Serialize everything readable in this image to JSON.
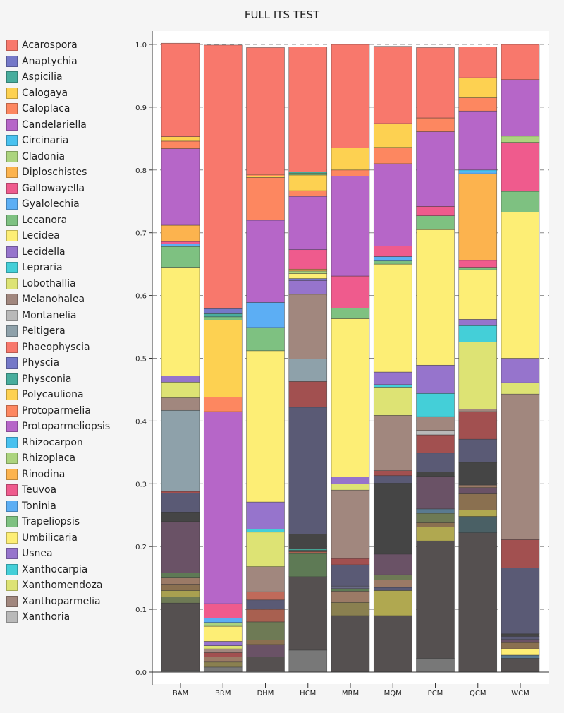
{
  "chart_data": {
    "type": "bar",
    "stacked": true,
    "title": "FULL ITS TEST",
    "xlabel": "",
    "ylabel": "",
    "ylim": [
      0,
      1
    ],
    "yticks": [
      "0.0",
      "0.1",
      "0.2",
      "0.3",
      "0.4",
      "0.5",
      "0.6",
      "0.7",
      "0.8",
      "0.9",
      "1.0"
    ],
    "grid": true,
    "legend_position": "left",
    "categories": [
      "BAM",
      "BRM",
      "DHM",
      "HCM",
      "MRM",
      "MQM",
      "PCM",
      "QCM",
      "WCM"
    ],
    "legend": [
      {
        "name": "Acarospora",
        "color": "#f8786c"
      },
      {
        "name": "Anaptychia",
        "color": "#7478c8"
      },
      {
        "name": "Aspicilia",
        "color": "#48ad9d"
      },
      {
        "name": "Calogaya",
        "color": "#fdd151"
      },
      {
        "name": "Caloplaca",
        "color": "#fd8760"
      },
      {
        "name": "Candelariella",
        "color": "#b666c8"
      },
      {
        "name": "Circinaria",
        "color": "#48c1ef"
      },
      {
        "name": "Cladonia",
        "color": "#acd47e"
      },
      {
        "name": "Diploschistes",
        "color": "#fcb34e"
      },
      {
        "name": "Gallowayella",
        "color": "#ef5b8d"
      },
      {
        "name": "Gyalolechia",
        "color": "#5caef4"
      },
      {
        "name": "Lecanora",
        "color": "#7ec181"
      },
      {
        "name": "Lecidea",
        "color": "#fdee75"
      },
      {
        "name": "Lecidella",
        "color": "#9674cc"
      },
      {
        "name": "Lepraria",
        "color": "#44cfd8"
      },
      {
        "name": "Lobothallia",
        "color": "#dde374"
      },
      {
        "name": "Melanohalea",
        "color": "#a1877e"
      },
      {
        "name": "Montanelia",
        "color": "#b9b9b9"
      },
      {
        "name": "Peltigera",
        "color": "#8ea1aa"
      },
      {
        "name": "Phaeophyscia",
        "color": "#f8786c"
      },
      {
        "name": "Physcia",
        "color": "#7478c8"
      },
      {
        "name": "Physconia",
        "color": "#48ad9d"
      },
      {
        "name": "Polycauliona",
        "color": "#fdd151"
      },
      {
        "name": "Protoparmelia",
        "color": "#fd8760"
      },
      {
        "name": "Protoparmeliopsis",
        "color": "#b666c8"
      },
      {
        "name": "Rhizocarpon",
        "color": "#48c1ef"
      },
      {
        "name": "Rhizoplaca",
        "color": "#acd47e"
      },
      {
        "name": "Rinodina",
        "color": "#fcb34e"
      },
      {
        "name": "Teuvoa",
        "color": "#ef5b8d"
      },
      {
        "name": "Toninia",
        "color": "#5caef4"
      },
      {
        "name": "Trapeliopsis",
        "color": "#7ec181"
      },
      {
        "name": "Umbilicaria",
        "color": "#fdee75"
      },
      {
        "name": "Usnea",
        "color": "#9674cc"
      },
      {
        "name": "Xanthocarpia",
        "color": "#44cfd8"
      },
      {
        "name": "Xanthomendoza",
        "color": "#dde374"
      },
      {
        "name": "Xanthoparmelia",
        "color": "#a1877e"
      },
      {
        "name": "Xanthoria",
        "color": "#b9b9b9"
      }
    ],
    "stacks": [
      {
        "category": "BAM",
        "segments": [
          {
            "color": "#787878",
            "value": 0.003
          },
          {
            "color": "#555050",
            "value": 0.107
          },
          {
            "color": "#6e7a55",
            "value": 0.01
          },
          {
            "color": "#a8a050",
            "value": 0.01
          },
          {
            "color": "#8a7050",
            "value": 0.01
          },
          {
            "color": "#9b7a66",
            "value": 0.01
          },
          {
            "color": "#5e7a55",
            "value": 0.008
          },
          {
            "color": "#6a5266",
            "value": 0.082
          },
          {
            "color": "#454545",
            "value": 0.015
          },
          {
            "color": "#5a5a75",
            "value": 0.03
          },
          {
            "color": "#a25050",
            "value": 0.003
          },
          {
            "color": "#8ea1aa",
            "value": 0.129
          },
          {
            "color": "#a1877e",
            "value": 0.02
          },
          {
            "color": "#dde374",
            "value": 0.025
          },
          {
            "color": "#9674cc",
            "value": 0.01
          },
          {
            "color": "#fdee75",
            "value": 0.173
          },
          {
            "color": "#7ec181",
            "value": 0.033
          },
          {
            "color": "#5caef4",
            "value": 0.004
          },
          {
            "color": "#ef5b8d",
            "value": 0.004
          },
          {
            "color": "#fcb34e",
            "value": 0.026
          },
          {
            "color": "#b666c8",
            "value": 0.122
          },
          {
            "color": "#fd8760",
            "value": 0.012
          },
          {
            "color": "#fdd151",
            "value": 0.007
          },
          {
            "color": "#f8786c",
            "value": 0.149
          }
        ]
      },
      {
        "category": "BRM",
        "segments": [
          {
            "color": "#787878",
            "value": 0.008
          },
          {
            "color": "#555050",
            "value": 0.0
          },
          {
            "color": "#8a8050",
            "value": 0.008
          },
          {
            "color": "#9b7a66",
            "value": 0.008
          },
          {
            "color": "#a25050",
            "value": 0.007
          },
          {
            "color": "#a1877e",
            "value": 0.006
          },
          {
            "color": "#dde374",
            "value": 0.005
          },
          {
            "color": "#9674cc",
            "value": 0.007
          },
          {
            "color": "#fdee75",
            "value": 0.024
          },
          {
            "color": "#acd47e",
            "value": 0.006
          },
          {
            "color": "#5caef4",
            "value": 0.007
          },
          {
            "color": "#ef5b8d",
            "value": 0.023
          },
          {
            "color": "#b666c8",
            "value": 0.306
          },
          {
            "color": "#fd8760",
            "value": 0.023
          },
          {
            "color": "#fdd151",
            "value": 0.123
          },
          {
            "color": "#7ec181",
            "value": 0.005
          },
          {
            "color": "#48ad9d",
            "value": 0.005
          },
          {
            "color": "#7478c8",
            "value": 0.008
          },
          {
            "color": "#f8786c",
            "value": 0.42
          }
        ]
      },
      {
        "category": "DHM",
        "segments": [
          {
            "color": "#787878",
            "value": 0.002
          },
          {
            "color": "#555050",
            "value": 0.022
          },
          {
            "color": "#6a5266",
            "value": 0.02
          },
          {
            "color": "#8a7050",
            "value": 0.007
          },
          {
            "color": "#6e7a55",
            "value": 0.029
          },
          {
            "color": "#a86050",
            "value": 0.02
          },
          {
            "color": "#5a5a75",
            "value": 0.015
          },
          {
            "color": "#c06a5a",
            "value": 0.013
          },
          {
            "color": "#a1877e",
            "value": 0.04
          },
          {
            "color": "#dde374",
            "value": 0.055
          },
          {
            "color": "#44cfd8",
            "value": 0.005
          },
          {
            "color": "#9674cc",
            "value": 0.043
          },
          {
            "color": "#fdee75",
            "value": 0.241
          },
          {
            "color": "#7ec181",
            "value": 0.037
          },
          {
            "color": "#5caef4",
            "value": 0.04
          },
          {
            "color": "#b666c8",
            "value": 0.131
          },
          {
            "color": "#fd8760",
            "value": 0.068
          },
          {
            "color": "#fdd151",
            "value": 0.002
          },
          {
            "color": "#fd8760",
            "value": 0.003
          },
          {
            "color": "#f8786c",
            "value": 0.202
          }
        ]
      },
      {
        "category": "HCM",
        "segments": [
          {
            "color": "#787878",
            "value": 0.035
          },
          {
            "color": "#555050",
            "value": 0.117
          },
          {
            "color": "#5e7a55",
            "value": 0.037
          },
          {
            "color": "#a86050",
            "value": 0.003
          },
          {
            "color": "#454545",
            "value": 0.002
          },
          {
            "color": "#48ad9d",
            "value": 0.002
          },
          {
            "color": "#454545",
            "value": 0.024
          },
          {
            "color": "#5a5a75",
            "value": 0.202
          },
          {
            "color": "#a25050",
            "value": 0.041
          },
          {
            "color": "#8ea1aa",
            "value": 0.036
          },
          {
            "color": "#a1877e",
            "value": 0.103
          },
          {
            "color": "#9674cc",
            "value": 0.022
          },
          {
            "color": "#7478c8",
            "value": 0.003
          },
          {
            "color": "#fdee75",
            "value": 0.008
          },
          {
            "color": "#acd47e",
            "value": 0.004
          },
          {
            "color": "#fcb34e",
            "value": 0.003
          },
          {
            "color": "#ef5b8d",
            "value": 0.031
          },
          {
            "color": "#b666c8",
            "value": 0.085
          },
          {
            "color": "#fd8760",
            "value": 0.009
          },
          {
            "color": "#fdd151",
            "value": 0.025
          },
          {
            "color": "#7ec181",
            "value": 0.003
          },
          {
            "color": "#48ad9d",
            "value": 0.002
          },
          {
            "color": "#f8786c",
            "value": 0.199
          }
        ]
      },
      {
        "category": "MRM",
        "segments": [
          {
            "color": "#555050",
            "value": 0.09
          },
          {
            "color": "#8a8050",
            "value": 0.021
          },
          {
            "color": "#9b7a66",
            "value": 0.018
          },
          {
            "color": "#5e7a55",
            "value": 0.004
          },
          {
            "color": "#6a6a85",
            "value": 0.004
          },
          {
            "color": "#5a5a75",
            "value": 0.034
          },
          {
            "color": "#a25050",
            "value": 0.01
          },
          {
            "color": "#a1877e",
            "value": 0.109
          },
          {
            "color": "#dde374",
            "value": 0.01
          },
          {
            "color": "#9674cc",
            "value": 0.011
          },
          {
            "color": "#fdee75",
            "value": 0.252
          },
          {
            "color": "#7ec181",
            "value": 0.017
          },
          {
            "color": "#ef5b8d",
            "value": 0.051
          },
          {
            "color": "#b666c8",
            "value": 0.159
          },
          {
            "color": "#fd8760",
            "value": 0.01
          },
          {
            "color": "#fdd151",
            "value": 0.035
          },
          {
            "color": "#f8786c",
            "value": 0.165
          }
        ]
      },
      {
        "category": "MQM",
        "segments": [
          {
            "color": "#555050",
            "value": 0.09
          },
          {
            "color": "#b0a850",
            "value": 0.04
          },
          {
            "color": "#5a5a75",
            "value": 0.005
          },
          {
            "color": "#9b7a66",
            "value": 0.012
          },
          {
            "color": "#6e7a55",
            "value": 0.008
          },
          {
            "color": "#6a5266",
            "value": 0.033
          },
          {
            "color": "#454545",
            "value": 0.113
          },
          {
            "color": "#5a5a75",
            "value": 0.012
          },
          {
            "color": "#a25050",
            "value": 0.008
          },
          {
            "color": "#a1877e",
            "value": 0.088
          },
          {
            "color": "#dde374",
            "value": 0.045
          },
          {
            "color": "#44cfd8",
            "value": 0.004
          },
          {
            "color": "#9674cc",
            "value": 0.02
          },
          {
            "color": "#fdee75",
            "value": 0.172
          },
          {
            "color": "#7ec181",
            "value": 0.005
          },
          {
            "color": "#5caef4",
            "value": 0.007
          },
          {
            "color": "#ef5b8d",
            "value": 0.017
          },
          {
            "color": "#b666c8",
            "value": 0.131
          },
          {
            "color": "#fd8760",
            "value": 0.026
          },
          {
            "color": "#fdd151",
            "value": 0.038
          },
          {
            "color": "#f8786c",
            "value": 0.123
          }
        ]
      },
      {
        "category": "PCM",
        "segments": [
          {
            "color": "#787878",
            "value": 0.022
          },
          {
            "color": "#555050",
            "value": 0.187
          },
          {
            "color": "#b0a850",
            "value": 0.022
          },
          {
            "color": "#8a7050",
            "value": 0.007
          },
          {
            "color": "#6e7a55",
            "value": 0.015
          },
          {
            "color": "#5a7a90",
            "value": 0.007
          },
          {
            "color": "#6a5266",
            "value": 0.052
          },
          {
            "color": "#454545",
            "value": 0.007
          },
          {
            "color": "#5a5a75",
            "value": 0.03
          },
          {
            "color": "#a25050",
            "value": 0.029
          },
          {
            "color": "#b9b9b9",
            "value": 0.007
          },
          {
            "color": "#a1877e",
            "value": 0.022
          },
          {
            "color": "#44cfd8",
            "value": 0.037
          },
          {
            "color": "#9674cc",
            "value": 0.045
          },
          {
            "color": "#fdee75",
            "value": 0.216
          },
          {
            "color": "#7ec181",
            "value": 0.022
          },
          {
            "color": "#ef5b8d",
            "value": 0.015
          },
          {
            "color": "#b666c8",
            "value": 0.119
          },
          {
            "color": "#fd8760",
            "value": 0.022
          },
          {
            "color": "#f8786c",
            "value": 0.112
          }
        ]
      },
      {
        "category": "QCM",
        "segments": [
          {
            "color": "#555050",
            "value": 0.222
          },
          {
            "color": "#4a6065",
            "value": 0.026
          },
          {
            "color": "#b0a850",
            "value": 0.01
          },
          {
            "color": "#8a7050",
            "value": 0.026
          },
          {
            "color": "#6a5266",
            "value": 0.01
          },
          {
            "color": "#9b7a66",
            "value": 0.004
          },
          {
            "color": "#454545",
            "value": 0.036
          },
          {
            "color": "#5a5a75",
            "value": 0.037
          },
          {
            "color": "#a25050",
            "value": 0.044
          },
          {
            "color": "#a1877e",
            "value": 0.004
          },
          {
            "color": "#dde374",
            "value": 0.107
          },
          {
            "color": "#44cfd8",
            "value": 0.026
          },
          {
            "color": "#9674cc",
            "value": 0.01
          },
          {
            "color": "#fdee75",
            "value": 0.079
          },
          {
            "color": "#7ec181",
            "value": 0.004
          },
          {
            "color": "#ef5b8d",
            "value": 0.011
          },
          {
            "color": "#fcb34e",
            "value": 0.138
          },
          {
            "color": "#5caef4",
            "value": 0.003
          },
          {
            "color": "#48c1ef",
            "value": 0.003
          },
          {
            "color": "#b666c8",
            "value": 0.094
          },
          {
            "color": "#fd8760",
            "value": 0.021
          },
          {
            "color": "#fdd151",
            "value": 0.032
          },
          {
            "color": "#f8786c",
            "value": 0.049
          }
        ]
      },
      {
        "category": "WCM",
        "segments": [
          {
            "color": "#555050",
            "value": 0.022
          },
          {
            "color": "#5a7a90",
            "value": 0.005
          },
          {
            "color": "#fdee75",
            "value": 0.01
          },
          {
            "color": "#8a7050",
            "value": 0.01
          },
          {
            "color": "#6a5266",
            "value": 0.005
          },
          {
            "color": "#5a5a75",
            "value": 0.005
          },
          {
            "color": "#454545",
            "value": 0.004
          },
          {
            "color": "#5a5a75",
            "value": 0.105
          },
          {
            "color": "#a25050",
            "value": 0.045
          },
          {
            "color": "#a1877e",
            "value": 0.232
          },
          {
            "color": "#dde374",
            "value": 0.018
          },
          {
            "color": "#9674cc",
            "value": 0.039
          },
          {
            "color": "#fdee75",
            "value": 0.233
          },
          {
            "color": "#7ec181",
            "value": 0.033
          },
          {
            "color": "#ef5b8d",
            "value": 0.078
          },
          {
            "color": "#acd47e",
            "value": 0.01
          },
          {
            "color": "#b666c8",
            "value": 0.09
          },
          {
            "color": "#f8786c",
            "value": 0.056
          }
        ]
      }
    ]
  }
}
